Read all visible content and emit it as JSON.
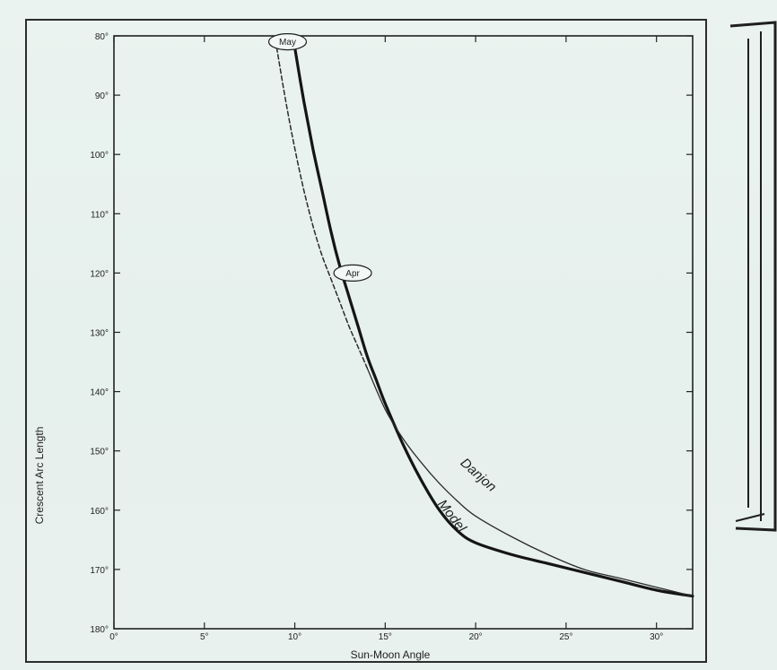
{
  "chart_data": {
    "type": "line",
    "title": "",
    "xlabel": "Sun-Moon Angle",
    "ylabel": "Crescent Arc Length",
    "xlim": [
      0,
      32
    ],
    "ylim": [
      180,
      80
    ],
    "y_inverted": true,
    "grid": false,
    "x_ticks": [
      0,
      5,
      10,
      15,
      20,
      25,
      30
    ],
    "x_tick_labels": [
      "0°",
      "5°",
      "10°",
      "15°",
      "20°",
      "25°",
      "30°"
    ],
    "y_ticks": [
      80,
      90,
      100,
      110,
      120,
      130,
      140,
      150,
      160,
      170,
      180
    ],
    "y_tick_labels": [
      "80°",
      "90°",
      "100°",
      "110°",
      "120°",
      "130°",
      "140°",
      "150°",
      "160°",
      "170°",
      "180°"
    ],
    "series": [
      {
        "name": "Model",
        "style": "solid-thick",
        "x": [
          10.0,
          10.5,
          11.0,
          11.5,
          12.0,
          12.5,
          13.0,
          13.5,
          14.0,
          14.5,
          15.0,
          16.0,
          17.0,
          18.0,
          19.0,
          20.0,
          22.0,
          24.0,
          26.0,
          28.0,
          30.0,
          32.0
        ],
        "y": [
          82,
          91,
          99,
          106,
          113,
          119,
          124,
          129,
          134,
          138,
          142,
          149,
          155,
          160,
          163.5,
          165.5,
          167.5,
          169,
          170.5,
          172,
          173.5,
          174.5
        ]
      },
      {
        "name": "Danjon",
        "style": "solid-thin",
        "x": [
          14.0,
          15.0,
          16.0,
          17.0,
          18.0,
          19.0,
          20.0,
          22.0,
          24.0,
          26.0,
          28.0,
          30.0,
          32.0
        ],
        "y": [
          136,
          143,
          148,
          152,
          155.5,
          158.5,
          161,
          164.5,
          167.5,
          170,
          171.5,
          173,
          174.5
        ]
      },
      {
        "name": "",
        "style": "dashed",
        "x": [
          9.0,
          9.5,
          10.0,
          10.5,
          11.0,
          11.5,
          12.0,
          12.5,
          13.0,
          13.5,
          14.0
        ],
        "y": [
          82,
          91,
          99,
          106,
          112,
          117,
          121,
          125,
          129,
          132.5,
          136
        ]
      }
    ],
    "annotations": [
      {
        "text": "May",
        "x": 9.6,
        "y": 81
      },
      {
        "text": "Apr",
        "x": 13.2,
        "y": 120
      }
    ]
  }
}
